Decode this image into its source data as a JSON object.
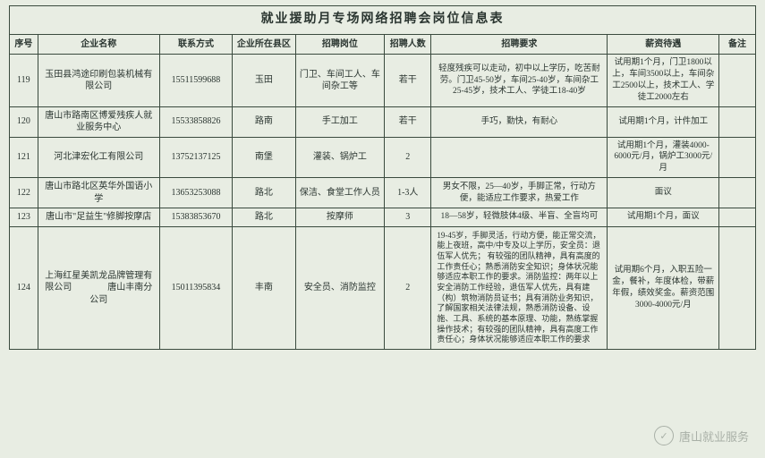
{
  "title": "就业援助月专场网络招聘会岗位信息表",
  "columns": [
    "序号",
    "企业名称",
    "联系方式",
    "企业所在县区",
    "招聘岗位",
    "招聘人数",
    "招聘要求",
    "薪资待遇",
    "备注"
  ],
  "rows": [
    {
      "seq": "119",
      "company": "玉田县鸿途印刷包装机械有限公司",
      "phone": "15511599688",
      "area": "玉田",
      "job": "门卫、车间工人、车间杂工等",
      "num": "若干",
      "req": "轻度残疾可以走动，初中以上学历，吃苦耐劳。门卫45-50岁，车间25-40岁，车间杂工25-45岁，技术工人、学徒工18-40岁",
      "salary": "试用期1个月，门卫1800以上，车间3500以上，车间杂工2500以上，技术工人、学徒工2000左右",
      "note": ""
    },
    {
      "seq": "120",
      "company": "唐山市路南区博爱残疾人就业服务中心",
      "phone": "15533858826",
      "area": "路南",
      "job": "手工加工",
      "num": "若干",
      "req": "手巧，勤快，有耐心",
      "salary": "试用期1个月，计件加工",
      "note": ""
    },
    {
      "seq": "121",
      "company": "河北津宏化工有限公司",
      "phone": "13752137125",
      "area": "南堡",
      "job": "灌装、锅炉工",
      "num": "2",
      "req": "",
      "salary": "试用期1个月，灌装4000-6000元/月，锅炉工3000元/月",
      "note": ""
    },
    {
      "seq": "122",
      "company": "唐山市路北区英华外国语小学",
      "phone": "13653253088",
      "area": "路北",
      "job": "保洁、食堂工作人员",
      "num": "1-3人",
      "req": "男女不限，25—40岁，手脚正常，行动方便，能适应工作要求，热爱工作",
      "salary": "面议",
      "note": ""
    },
    {
      "seq": "123",
      "company": "唐山市\"足益生\"修脚按摩店",
      "phone": "15383853670",
      "area": "路北",
      "job": "按摩师",
      "num": "3",
      "req": "18—58岁，轻微肢体4级、半盲、全盲均可",
      "salary": "试用期1个月，面议",
      "note": ""
    },
    {
      "seq": "124",
      "company": "上海红星美凯龙品牌管理有限公司　　　　唐山丰南分公司",
      "phone": "15011395834",
      "area": "丰南",
      "job": "安全员、消防监控",
      "num": "2",
      "req": "19-45岁，手脚灵活，行动方便，能正常交流，能上夜班，高中/中专及以上学历，安全员：退伍军人优先；  有较强的团队精神，具有高度的工作责任心；熟悉消防安全知识；身体状况能够适应本职工作的要求。消防监控：两年以上安全消防工作经验，退伍军人优先，具有建（构）筑物消防员证书；具有消防业务知识，了解国家相关法律法规，熟悉消防设备、设施、工具、系统的基本原理、功能，熟练掌握操作技术；有较强的团队精神，具有高度工作责任心；身体状况能够适应本职工作的要求",
      "salary": "试用期6个月，入职五险一金，餐补，年度体检，带薪年假，绩效奖金。薪资范围3000-4000元/月",
      "note": ""
    }
  ],
  "watermark": {
    "icon": "✓",
    "text": "唐山就业服务"
  },
  "colors": {
    "bg": "#e8ede3",
    "border": "#3a4a3e",
    "text": "#2a3530",
    "watermark": "#a9b0a7"
  }
}
